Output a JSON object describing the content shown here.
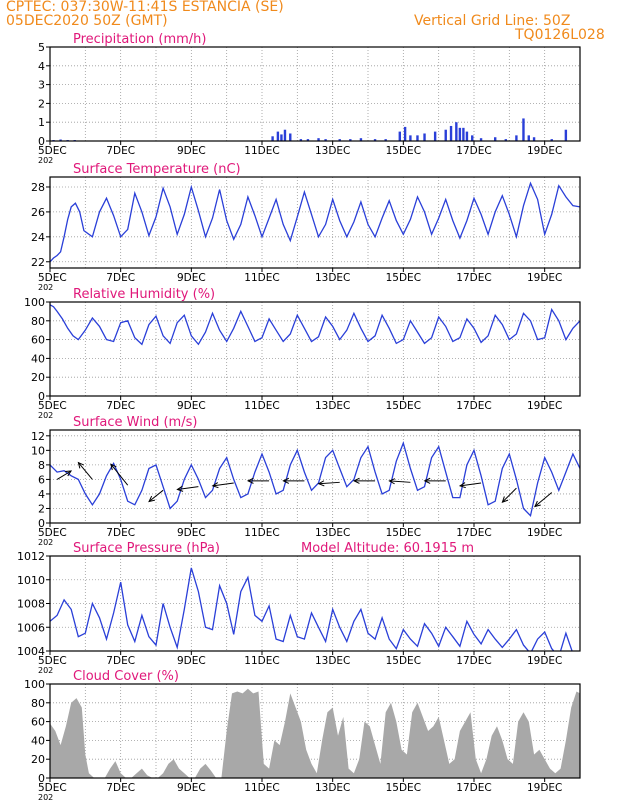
{
  "header": {
    "line1": "CPTEC:   037:30W-11:41S   ESTANCIA (SE)",
    "line2": "05DEC2020 50Z (GMT)",
    "grid_note": "Vertical Grid Line: 50Z",
    "code": "TQ0126L028"
  },
  "colors": {
    "header": "#f08a1c",
    "title": "#e0187a",
    "line": "#2a3fd8",
    "bar": "#2a3fd8",
    "cloud": "#a8a8a8",
    "arrow": "#000000"
  },
  "x_axis": {
    "range": [
      "05DEC2020",
      "20DEC2020"
    ],
    "tick_labels": [
      "5DEC",
      "7DEC",
      "9DEC",
      "11DEC",
      "13DEC",
      "15DEC",
      "17DEC",
      "19DEC"
    ],
    "tick_days": [
      0,
      2,
      4,
      6,
      8,
      10,
      12,
      14
    ],
    "year_label": "202"
  },
  "chart_data": [
    {
      "id": "precip",
      "type": "bar",
      "title": "Precipitation  (mm/h)",
      "ylim": [
        0,
        5
      ],
      "yticks": [
        "0",
        "1",
        "2",
        "3",
        "4",
        "5"
      ],
      "x": [
        0.1,
        0.3,
        0.5,
        0.7,
        6.3,
        6.45,
        6.55,
        6.65,
        6.8,
        7.1,
        7.3,
        7.6,
        7.8,
        8.2,
        8.5,
        8.8,
        9.2,
        9.5,
        9.9,
        10.05,
        10.2,
        10.4,
        10.6,
        10.9,
        11.2,
        11.35,
        11.5,
        11.6,
        11.7,
        11.8,
        11.95,
        12.2,
        12.6,
        12.9,
        13.2,
        13.4,
        13.55,
        13.7,
        14.2,
        14.6
      ],
      "values": [
        0.05,
        0.08,
        0.05,
        0.05,
        0.25,
        0.5,
        0.35,
        0.6,
        0.4,
        0.1,
        0.1,
        0.15,
        0.1,
        0.1,
        0.1,
        0.15,
        0.1,
        0.1,
        0.5,
        0.75,
        0.3,
        0.3,
        0.4,
        0.5,
        0.6,
        0.8,
        1.0,
        0.7,
        0.7,
        0.5,
        0.3,
        0.15,
        0.2,
        0.1,
        0.3,
        1.2,
        0.3,
        0.2,
        0.1,
        0.6
      ]
    },
    {
      "id": "temp",
      "type": "line",
      "title": "Surface Temperature (nC)",
      "ylim": [
        21.5,
        28.8
      ],
      "yticks": [
        "22",
        "24",
        "26",
        "28"
      ],
      "ytick_values": [
        22,
        24,
        26,
        28
      ],
      "x": [
        0,
        0.1,
        0.2,
        0.3,
        0.4,
        0.5,
        0.6,
        0.72,
        0.84,
        0.96,
        1.2,
        1.4,
        1.6,
        1.8,
        2.0,
        2.2,
        2.4,
        2.6,
        2.8,
        3.0,
        3.2,
        3.4,
        3.6,
        3.8,
        4.0,
        4.2,
        4.4,
        4.6,
        4.8,
        5.0,
        5.2,
        5.4,
        5.6,
        5.8,
        6.0,
        6.2,
        6.4,
        6.6,
        6.8,
        7.0,
        7.2,
        7.4,
        7.6,
        7.8,
        8.0,
        8.2,
        8.4,
        8.6,
        8.8,
        9.0,
        9.2,
        9.4,
        9.6,
        9.8,
        10.0,
        10.2,
        10.4,
        10.6,
        10.8,
        11.0,
        11.2,
        11.4,
        11.6,
        11.8,
        12.0,
        12.2,
        12.4,
        12.6,
        12.8,
        13.0,
        13.2,
        13.4,
        13.6,
        13.8,
        14.0,
        14.2,
        14.4,
        14.6,
        14.8,
        15.0
      ],
      "values": [
        22.0,
        22.3,
        22.5,
        22.8,
        24.0,
        25.4,
        26.4,
        26.7,
        26.0,
        24.5,
        24.0,
        26.0,
        27.1,
        25.7,
        24.0,
        24.6,
        27.5,
        26.0,
        24.1,
        25.6,
        27.9,
        26.4,
        24.2,
        25.8,
        28.0,
        26.1,
        24.0,
        25.5,
        27.8,
        25.3,
        23.8,
        25.0,
        27.2,
        25.7,
        24.0,
        25.5,
        27.0,
        25.0,
        23.7,
        25.6,
        27.6,
        25.8,
        24.0,
        25.0,
        27.0,
        25.3,
        24.0,
        25.2,
        26.8,
        25.0,
        24.0,
        25.5,
        26.9,
        25.3,
        24.2,
        25.4,
        27.2,
        26.0,
        24.2,
        25.5,
        27.0,
        25.3,
        23.9,
        25.3,
        27.1,
        25.8,
        24.2,
        26.0,
        27.3,
        25.8,
        24.0,
        26.5,
        28.3,
        27.0,
        24.2,
        25.8,
        28.1,
        27.2,
        26.5,
        26.4
      ]
    },
    {
      "id": "rh",
      "type": "line",
      "title": "Relative Humidity  (%)",
      "ylim": [
        0,
        100
      ],
      "yticks": [
        "0",
        "20",
        "40",
        "60",
        "80",
        "100"
      ],
      "ytick_values": [
        0,
        20,
        40,
        60,
        80,
        100
      ],
      "x": [
        0,
        0.1,
        0.2,
        0.35,
        0.5,
        0.65,
        0.8,
        1.0,
        1.2,
        1.4,
        1.6,
        1.8,
        2.0,
        2.2,
        2.4,
        2.6,
        2.8,
        3.0,
        3.2,
        3.4,
        3.6,
        3.8,
        4.0,
        4.2,
        4.4,
        4.6,
        4.8,
        5.0,
        5.2,
        5.4,
        5.6,
        5.8,
        6.0,
        6.2,
        6.4,
        6.6,
        6.8,
        7.0,
        7.2,
        7.4,
        7.6,
        7.8,
        8.0,
        8.2,
        8.4,
        8.6,
        8.8,
        9.0,
        9.2,
        9.4,
        9.6,
        9.8,
        10.0,
        10.2,
        10.4,
        10.6,
        10.8,
        11.0,
        11.2,
        11.4,
        11.6,
        11.8,
        12.0,
        12.2,
        12.4,
        12.6,
        12.8,
        13.0,
        13.2,
        13.4,
        13.6,
        13.8,
        14.0,
        14.2,
        14.4,
        14.6,
        14.8,
        15.0
      ],
      "values": [
        97,
        95,
        90,
        82,
        72,
        64,
        60,
        70,
        83,
        74,
        60,
        58,
        78,
        80,
        62,
        55,
        76,
        85,
        64,
        56,
        78,
        86,
        64,
        55,
        68,
        88,
        70,
        58,
        72,
        90,
        74,
        58,
        62,
        82,
        70,
        58,
        66,
        86,
        72,
        58,
        63,
        84,
        74,
        60,
        70,
        88,
        72,
        58,
        64,
        86,
        72,
        56,
        60,
        80,
        68,
        56,
        62,
        84,
        74,
        58,
        62,
        82,
        72,
        57,
        64,
        86,
        76,
        60,
        66,
        88,
        80,
        60,
        62,
        92,
        80,
        60,
        72,
        80
      ]
    },
    {
      "id": "wind",
      "type": "line",
      "title": "Surface Wind  (m/s)",
      "ylim": [
        0,
        12.8
      ],
      "yticks": [
        "0",
        "2",
        "4",
        "6",
        "8",
        "10",
        "12"
      ],
      "ytick_values": [
        0,
        2,
        4,
        6,
        8,
        10,
        12
      ],
      "x": [
        0,
        0.2,
        0.4,
        0.6,
        0.8,
        1.0,
        1.2,
        1.4,
        1.6,
        1.8,
        2.0,
        2.2,
        2.4,
        2.6,
        2.8,
        3.0,
        3.2,
        3.4,
        3.6,
        3.8,
        4.0,
        4.2,
        4.4,
        4.6,
        4.8,
        5.0,
        5.2,
        5.4,
        5.6,
        5.8,
        6.0,
        6.2,
        6.4,
        6.6,
        6.8,
        7.0,
        7.2,
        7.4,
        7.6,
        7.8,
        8.0,
        8.2,
        8.4,
        8.6,
        8.8,
        9.0,
        9.2,
        9.4,
        9.6,
        9.8,
        10.0,
        10.2,
        10.4,
        10.6,
        10.8,
        11.0,
        11.2,
        11.4,
        11.6,
        11.8,
        12.0,
        12.2,
        12.4,
        12.6,
        12.8,
        13.0,
        13.2,
        13.4,
        13.6,
        13.8,
        14.0,
        14.2,
        14.4,
        14.6,
        14.8,
        15.0
      ],
      "values": [
        8.0,
        7.0,
        7.2,
        6.5,
        6.0,
        4.0,
        2.5,
        4.0,
        6.5,
        8.2,
        6.0,
        3.0,
        2.5,
        4.5,
        7.5,
        8.0,
        5.0,
        2.0,
        3.0,
        6.0,
        8.0,
        6.0,
        3.5,
        4.5,
        7.5,
        9.0,
        6.0,
        3.5,
        4.0,
        7.0,
        9.5,
        7.0,
        4.0,
        4.5,
        8.0,
        10.0,
        7.0,
        4.5,
        5.5,
        9.0,
        10.0,
        7.5,
        5.0,
        6.0,
        9.0,
        10.5,
        7.0,
        4.0,
        4.5,
        8.5,
        11.0,
        7.5,
        4.5,
        5.0,
        9.0,
        10.5,
        7.0,
        3.5,
        3.5,
        8.0,
        10.0,
        6.5,
        2.5,
        3.0,
        7.5,
        9.5,
        6.0,
        2.0,
        1.0,
        5.5,
        9.0,
        7.0,
        4.5,
        7.0,
        9.5,
        7.5
      ],
      "arrows": {
        "x": [
          0.2,
          1.2,
          2.2,
          3.2,
          4.2,
          5.2,
          6.2,
          7.2,
          8.2,
          9.2,
          10.2,
          11.2,
          12.2,
          13.2,
          14.2
        ],
        "y": [
          6.0,
          6.0,
          5.2,
          4.5,
          5.0,
          5.5,
          5.8,
          5.8,
          5.6,
          5.8,
          5.6,
          5.8,
          5.5,
          4.8,
          4.2
        ],
        "u": [
          1.0,
          -1.0,
          -1.2,
          -1.0,
          -1.5,
          -1.5,
          -1.5,
          -1.5,
          -1.5,
          -1.5,
          -1.5,
          -1.5,
          -1.5,
          -1.0,
          -1.2
        ],
        "v": [
          0.6,
          1.2,
          1.5,
          -0.8,
          -0.2,
          -0.2,
          0.0,
          0.0,
          -0.1,
          0.0,
          0.1,
          0.0,
          -0.2,
          -1.0,
          -1.0
        ]
      }
    },
    {
      "id": "pres",
      "type": "line",
      "title": "Surface Pressure (hPa)",
      "extra_label": "Model Altitude: 60.1915  m",
      "ylim": [
        1004,
        1012
      ],
      "yticks": [
        "1004",
        "1006",
        "1008",
        "1010",
        "1012"
      ],
      "ytick_values": [
        1004,
        1006,
        1008,
        1010,
        1012
      ],
      "x": [
        0,
        0.2,
        0.4,
        0.6,
        0.8,
        1.0,
        1.2,
        1.4,
        1.6,
        1.8,
        2.0,
        2.2,
        2.4,
        2.6,
        2.8,
        3.0,
        3.2,
        3.4,
        3.6,
        3.8,
        4.0,
        4.2,
        4.4,
        4.6,
        4.8,
        5.0,
        5.2,
        5.4,
        5.6,
        5.8,
        6.0,
        6.2,
        6.4,
        6.6,
        6.8,
        7.0,
        7.2,
        7.4,
        7.6,
        7.8,
        8.0,
        8.2,
        8.4,
        8.6,
        8.8,
        9.0,
        9.2,
        9.4,
        9.6,
        9.8,
        10.0,
        10.2,
        10.4,
        10.6,
        10.8,
        11.0,
        11.2,
        11.4,
        11.6,
        11.8,
        12.0,
        12.2,
        12.4,
        12.6,
        12.8,
        13.0,
        13.2,
        13.4,
        13.6,
        13.8,
        14.0,
        14.2,
        14.4,
        14.6,
        14.8,
        15.0
      ],
      "values": [
        1006.5,
        1007.0,
        1008.3,
        1007.5,
        1005.2,
        1005.5,
        1008.0,
        1006.8,
        1005.0,
        1007.2,
        1009.8,
        1006.2,
        1004.8,
        1007.0,
        1005.2,
        1004.5,
        1008.0,
        1006.0,
        1004.3,
        1007.5,
        1011.0,
        1009.0,
        1006.0,
        1005.8,
        1009.5,
        1008.0,
        1005.4,
        1009.0,
        1010.2,
        1007.0,
        1006.5,
        1007.8,
        1005.0,
        1004.8,
        1007.0,
        1005.2,
        1005.0,
        1007.2,
        1006.0,
        1004.8,
        1007.5,
        1006.0,
        1004.8,
        1006.5,
        1007.5,
        1005.5,
        1005.0,
        1006.8,
        1005.0,
        1004.2,
        1005.8,
        1005.0,
        1004.4,
        1006.3,
        1005.5,
        1004.4,
        1006.0,
        1005.2,
        1004.4,
        1006.5,
        1005.4,
        1004.6,
        1005.8,
        1005.0,
        1004.3,
        1005.0,
        1005.8,
        1004.5,
        1003.8,
        1005.0,
        1005.6,
        1004.2,
        1003.5,
        1005.5,
        1003.8,
        1003.5
      ]
    },
    {
      "id": "cloud",
      "type": "area",
      "title": "Cloud Cover  (%)",
      "ylim": [
        0,
        100
      ],
      "yticks": [
        "0",
        "20",
        "40",
        "60",
        "80",
        "100"
      ],
      "ytick_values": [
        0,
        20,
        40,
        60,
        80,
        100
      ],
      "x": [
        0,
        0.15,
        0.3,
        0.45,
        0.6,
        0.75,
        0.9,
        1.0,
        1.1,
        1.25,
        1.4,
        1.55,
        1.7,
        1.85,
        2.0,
        2.15,
        2.3,
        2.45,
        2.6,
        2.75,
        2.9,
        3.05,
        3.2,
        3.35,
        3.5,
        3.65,
        3.8,
        3.95,
        4.1,
        4.25,
        4.4,
        4.55,
        4.7,
        4.85,
        5.0,
        5.15,
        5.3,
        5.45,
        5.6,
        5.75,
        5.9,
        6.05,
        6.2,
        6.35,
        6.5,
        6.65,
        6.8,
        6.95,
        7.1,
        7.25,
        7.4,
        7.55,
        7.7,
        7.85,
        8.0,
        8.15,
        8.3,
        8.45,
        8.6,
        8.75,
        8.9,
        9.05,
        9.2,
        9.35,
        9.5,
        9.65,
        9.8,
        9.95,
        10.1,
        10.25,
        10.4,
        10.55,
        10.7,
        10.85,
        11.0,
        11.15,
        11.3,
        11.45,
        11.6,
        11.75,
        11.9,
        12.05,
        12.2,
        12.35,
        12.5,
        12.65,
        12.8,
        12.95,
        13.1,
        13.25,
        13.4,
        13.55,
        13.7,
        13.85,
        14.0,
        14.15,
        14.3,
        14.45,
        14.6,
        14.75,
        14.9,
        15.0
      ],
      "values": [
        58,
        50,
        35,
        55,
        80,
        85,
        75,
        25,
        5,
        0,
        0,
        0,
        10,
        18,
        5,
        0,
        0,
        5,
        10,
        3,
        0,
        0,
        5,
        15,
        20,
        10,
        5,
        0,
        0,
        10,
        15,
        8,
        0,
        0,
        50,
        90,
        92,
        90,
        95,
        90,
        92,
        15,
        10,
        40,
        35,
        60,
        90,
        75,
        60,
        30,
        15,
        5,
        40,
        70,
        75,
        45,
        65,
        10,
        5,
        20,
        60,
        55,
        35,
        15,
        70,
        80,
        60,
        30,
        25,
        70,
        80,
        65,
        50,
        55,
        65,
        40,
        15,
        20,
        50,
        60,
        70,
        20,
        5,
        20,
        45,
        55,
        40,
        20,
        15,
        60,
        70,
        60,
        25,
        30,
        20,
        10,
        5,
        10,
        40,
        75,
        92,
        90
      ]
    }
  ]
}
